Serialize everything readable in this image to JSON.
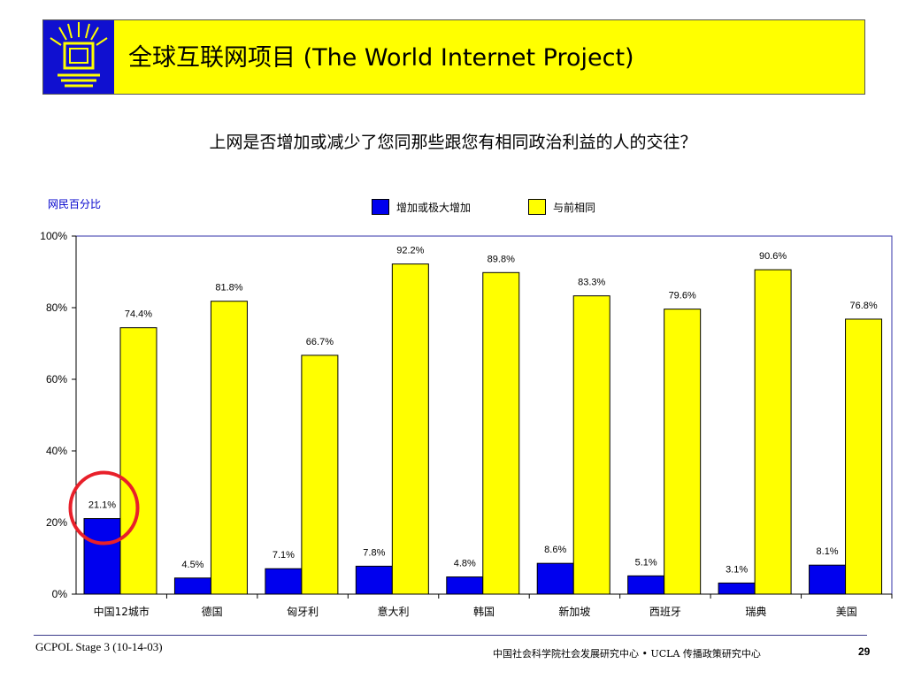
{
  "header": {
    "title": "全球互联网项目 (The World Internet Project)"
  },
  "footer": {
    "left": "GCPOL Stage 3 (10-14-03)",
    "org": "中国社会科学院社会发展研究中心 • UCLA 传播政策研究中心",
    "page": "29"
  },
  "colors": {
    "header_bg": "#ffff00",
    "logo_bg": "#1010d0",
    "series_increase": "#0000ee",
    "series_same": "#ffff00",
    "highlight_circle": "#e8202a",
    "plot_border": "#3333aa"
  },
  "chart_data": {
    "type": "bar",
    "title": "上网是否增加或减少了您同那些跟您有相同政治利益的人的交往？",
    "ylabel": "网民百分比",
    "xlabel": "",
    "ylim": [
      0,
      100
    ],
    "yticks": [
      "0%",
      "20%",
      "40%",
      "60%",
      "80%",
      "100%"
    ],
    "categories": [
      "中国12城市",
      "德国",
      "匈牙利",
      "意大利",
      "韩国",
      "新加坡",
      "西班牙",
      "瑞典",
      "美国"
    ],
    "series": [
      {
        "name": "增加或极大增加",
        "color": "#0000ee",
        "values": [
          21.1,
          4.5,
          7.1,
          7.8,
          4.8,
          8.6,
          5.1,
          3.1,
          8.1
        ],
        "labels": [
          "21.1%",
          "4.5%",
          "7.1%",
          "7.8%",
          "4.8%",
          "8.6%",
          "5.1%",
          "3.1%",
          "8.1%"
        ]
      },
      {
        "name": "与前相同",
        "color": "#ffff00",
        "values": [
          74.4,
          81.8,
          66.7,
          92.2,
          89.8,
          83.3,
          79.6,
          90.6,
          76.8
        ],
        "labels": [
          "74.4%",
          "81.8%",
          "66.7%",
          "92.2%",
          "89.8%",
          "83.3%",
          "79.6%",
          "90.6%",
          "76.8%"
        ]
      }
    ],
    "highlight_category": "中国12城市",
    "legend_position": "top-center"
  }
}
